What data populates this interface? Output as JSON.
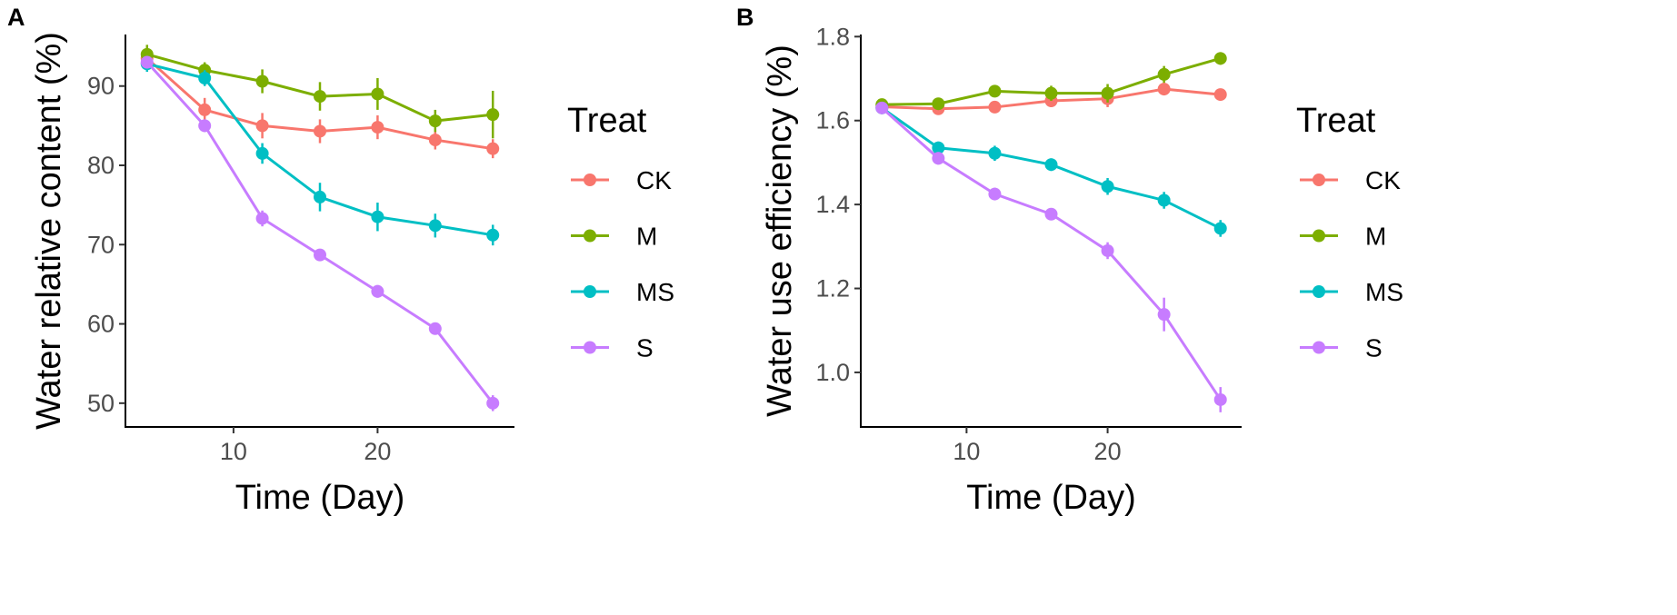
{
  "chart_data": [
    {
      "type": "line",
      "panel_label": "A",
      "xlabel": "Time (Day)",
      "ylabel": "Water relative content (%)",
      "xlim": [
        2.5,
        29.5
      ],
      "ylim": [
        47,
        96.5
      ],
      "xticks": [
        10,
        20
      ],
      "yticks": [
        50,
        60,
        70,
        80,
        90
      ],
      "x": [
        4,
        8,
        12,
        16,
        20,
        24,
        28
      ],
      "legend_title": "Treat",
      "series": [
        {
          "name": "CK",
          "color": "#F8766D",
          "values": [
            93.5,
            87.0,
            85.0,
            84.3,
            84.8,
            83.2,
            82.1
          ],
          "errors": [
            1.0,
            1.5,
            1.6,
            1.5,
            1.5,
            1.2,
            1.2
          ]
        },
        {
          "name": "M",
          "color": "#7CAE00",
          "values": [
            94.0,
            92.0,
            90.6,
            88.7,
            89.0,
            85.6,
            86.4
          ],
          "errors": [
            1.2,
            1.0,
            1.5,
            1.8,
            2.0,
            1.4,
            3.0
          ]
        },
        {
          "name": "MS",
          "color": "#00BFC4",
          "values": [
            92.8,
            91.0,
            81.5,
            76.0,
            73.5,
            72.4,
            71.2
          ],
          "errors": [
            1.0,
            1.0,
            1.3,
            1.8,
            1.8,
            1.5,
            1.3
          ]
        },
        {
          "name": "S",
          "color": "#C77CFF",
          "values": [
            93.0,
            85.0,
            73.3,
            68.7,
            64.1,
            59.4,
            50.0
          ],
          "errors": [
            0.8,
            0.8,
            1.0,
            0.6,
            0.8,
            0.6,
            1.0
          ]
        }
      ]
    },
    {
      "type": "line",
      "panel_label": "B",
      "xlabel": "Time (Day)",
      "ylabel": "Water use efficiency (%)",
      "xlim": [
        2.5,
        29.5
      ],
      "ylim": [
        0.87,
        1.805
      ],
      "xticks": [
        10,
        20
      ],
      "yticks": [
        1.0,
        1.2,
        1.4,
        1.6,
        1.8
      ],
      "ytick_labels": [
        "1.0",
        "1.2",
        "1.4",
        "1.6",
        "1.8"
      ],
      "x": [
        4,
        8,
        12,
        16,
        20,
        24,
        28
      ],
      "legend_title": "Treat",
      "series": [
        {
          "name": "CK",
          "color": "#F8766D",
          "values": [
            1.633,
            1.628,
            1.632,
            1.647,
            1.652,
            1.675,
            1.662
          ],
          "errors": [
            0.01,
            0.01,
            0.01,
            0.015,
            0.02,
            0.015,
            0.012
          ]
        },
        {
          "name": "M",
          "color": "#7CAE00",
          "values": [
            1.638,
            1.64,
            1.67,
            1.665,
            1.665,
            1.71,
            1.748
          ],
          "errors": [
            0.01,
            0.01,
            0.012,
            0.018,
            0.022,
            0.02,
            0.015
          ]
        },
        {
          "name": "MS",
          "color": "#00BFC4",
          "values": [
            1.63,
            1.535,
            1.522,
            1.495,
            1.443,
            1.41,
            1.343
          ],
          "errors": [
            0.01,
            0.015,
            0.018,
            0.015,
            0.02,
            0.02,
            0.02
          ]
        },
        {
          "name": "S",
          "color": "#C77CFF",
          "values": [
            1.63,
            1.51,
            1.425,
            1.377,
            1.29,
            1.138,
            0.935
          ],
          "errors": [
            0.01,
            0.015,
            0.015,
            0.012,
            0.02,
            0.04,
            0.03
          ]
        }
      ]
    }
  ]
}
